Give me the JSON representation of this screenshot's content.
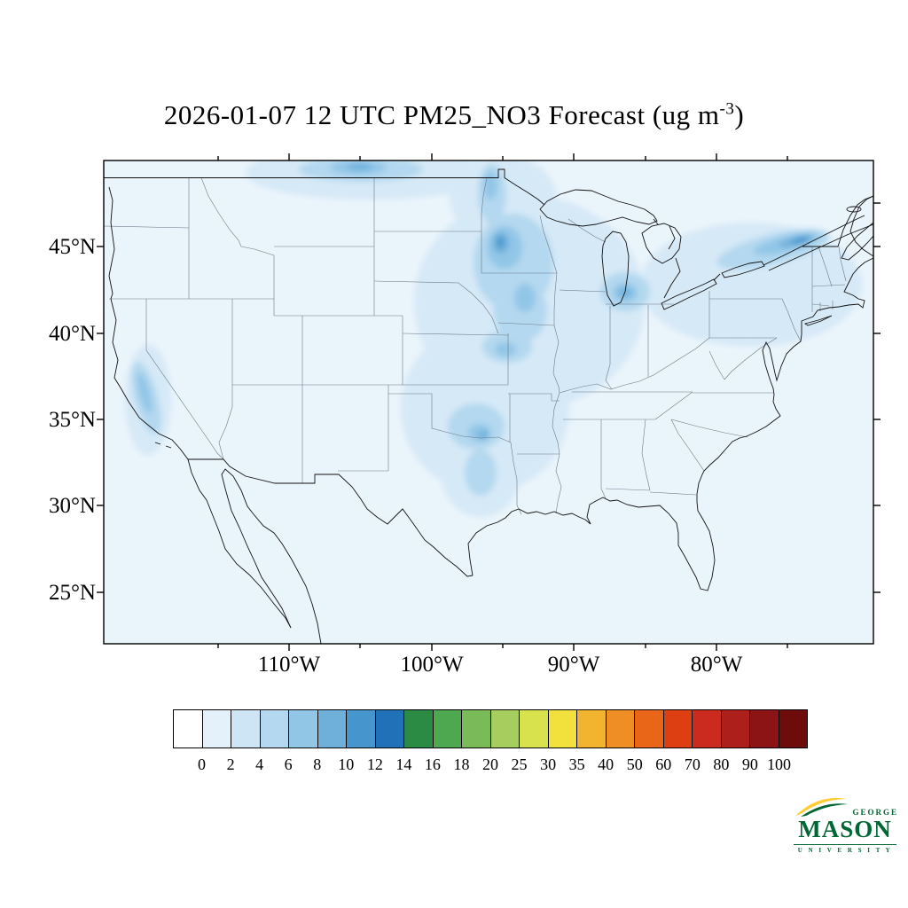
{
  "title": {
    "prefix": "2026-01-07 12 UTC PM25_NO3 Forecast (ug m",
    "sup": "-3",
    "suffix": ")"
  },
  "axes": {
    "lat_labels": [
      "45°N",
      "40°N",
      "35°N",
      "30°N",
      "25°N"
    ],
    "lon_labels": [
      "110°W",
      "100°W",
      "90°W",
      "80°W"
    ]
  },
  "colorbar": {
    "labels": [
      "0",
      "2",
      "4",
      "6",
      "8",
      "10",
      "12",
      "14",
      "16",
      "18",
      "20",
      "25",
      "30",
      "35",
      "40",
      "50",
      "60",
      "70",
      "80",
      "90",
      "100"
    ],
    "colors": [
      "#FFFFFF",
      "#E4F1FA",
      "#CEE5F5",
      "#B3D8EF",
      "#92C6E7",
      "#6FB0DB",
      "#4695CC",
      "#2171B8",
      "#2B8A44",
      "#4EA84F",
      "#79BB57",
      "#A6CE5E",
      "#D8E24C",
      "#F2E03C",
      "#F2B32F",
      "#EF8E25",
      "#E96518",
      "#DD3F13",
      "#CB2A1E",
      "#AD1F1B",
      "#8C1414",
      "#6E0C0C"
    ]
  },
  "logo": {
    "george": "GEORGE",
    "mason": "MASON",
    "university": "U N I V E R S I T Y",
    "green": "#006633",
    "gold": "#FFCC33"
  },
  "chart_data": {
    "type": "heatmap",
    "subtype": "filled-contour forecast map (CONUS)",
    "title": "2026-01-07 12 UTC PM25_NO3 Forecast (ug m-3)",
    "variable": "PM25_NO3",
    "valid_time": "2026-01-07 12 UTC",
    "units": "ug m-3",
    "lat_ticks_deg_n": [
      45,
      40,
      35,
      30,
      25
    ],
    "lon_ticks_deg_w": [
      110,
      100,
      90,
      80
    ],
    "contour_levels": [
      0,
      2,
      4,
      6,
      8,
      10,
      12,
      14,
      16,
      18,
      20,
      25,
      30,
      35,
      40,
      50,
      60,
      70,
      80,
      90,
      100
    ],
    "palette": [
      "#FFFFFF",
      "#E4F1FA",
      "#CEE5F5",
      "#B3D8EF",
      "#92C6E7",
      "#6FB0DB",
      "#4695CC",
      "#2171B8",
      "#2B8A44",
      "#4EA84F",
      "#79BB57",
      "#A6CE5E",
      "#D8E24C",
      "#F2E03C",
      "#F2B32F",
      "#EF8E25",
      "#E96518",
      "#DD3F13",
      "#CB2A1E",
      "#AD1F1B",
      "#8C1414",
      "#6E0C0C"
    ],
    "legend_position": "bottom",
    "grid": false,
    "background_value_ugm3": 1,
    "observed_maxima": [
      {
        "region": "St. Lawrence Valley / Lake Ontario corridor",
        "approx_value_ugm3": 10
      },
      {
        "region": "Minnesota / Upper Mississippi Valley",
        "approx_value_ugm3": 8
      },
      {
        "region": "Lower Michigan / Lake Michigan",
        "approx_value_ugm3": 8
      },
      {
        "region": "Canadian Prairies near 105W border",
        "approx_value_ugm3": 6
      },
      {
        "region": "Red River Valley (ND/Manitoba)",
        "approx_value_ugm3": 6
      },
      {
        "region": "Oklahoma / Kansas",
        "approx_value_ugm3": 8
      },
      {
        "region": "Central Texas",
        "approx_value_ugm3": 4
      },
      {
        "region": "California Central Valley",
        "approx_value_ugm3": 6
      },
      {
        "region": "Iowa / Missouri corridor",
        "approx_value_ugm3": 6
      }
    ]
  }
}
